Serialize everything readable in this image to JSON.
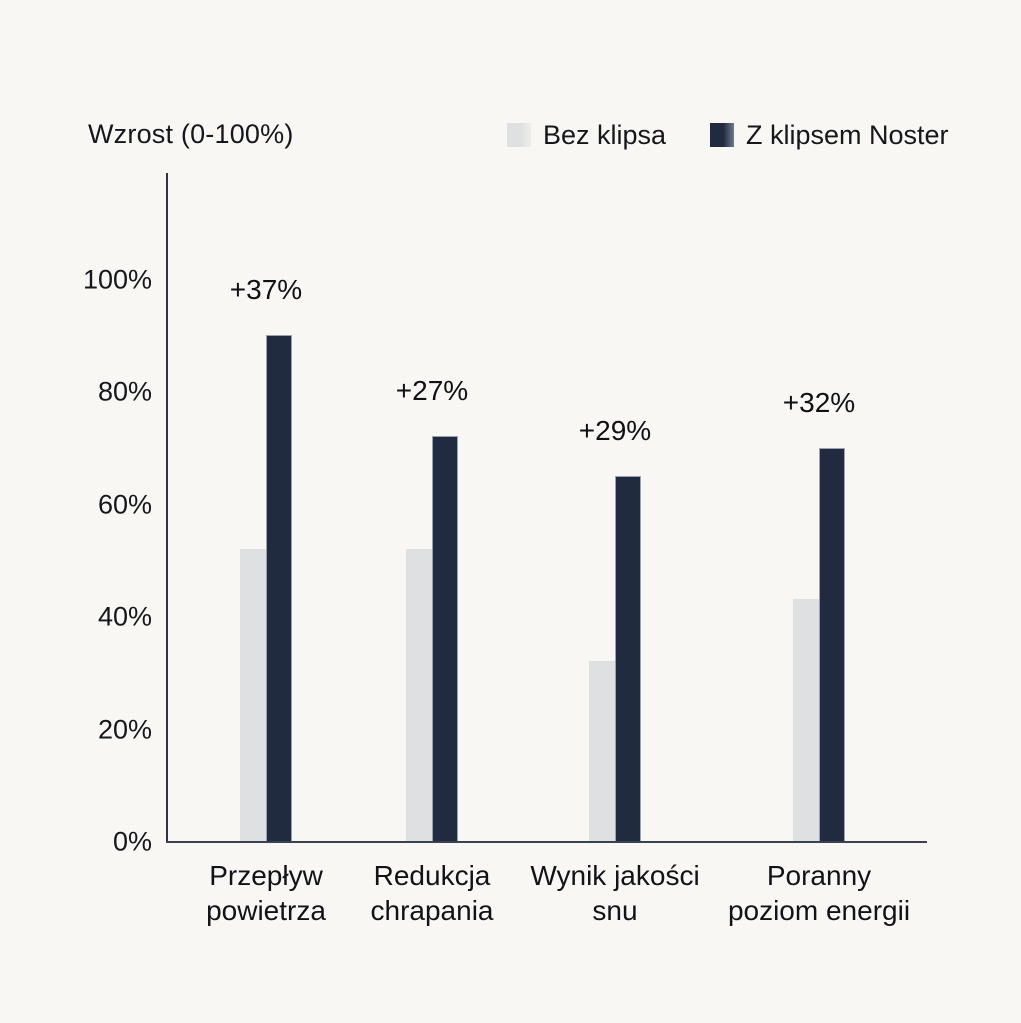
{
  "header": {
    "axis_title": "Wzrost (0-100%)"
  },
  "chart_data": {
    "type": "bar",
    "title": "Wzrost (0-100%)",
    "ylabel": "Wzrost (0-100%)",
    "xlabel": "",
    "ylim": [
      0,
      100
    ],
    "grid": false,
    "legend_position": "top",
    "y_tick_values": [
      0,
      20,
      40,
      60,
      80,
      100
    ],
    "y_tick_labels": [
      "0%",
      "20%",
      "40%",
      "60%",
      "80%",
      "100%"
    ],
    "categories": [
      "Przepływ powietrza",
      "Redukcja chrapania",
      "Wynik jakości snu",
      "Poranny poziom energii"
    ],
    "category_lines": [
      [
        "Przepływ",
        "powietrza"
      ],
      [
        "Redukcja",
        "chrapania"
      ],
      [
        "Wynik jakości",
        "snu"
      ],
      [
        "Poranny",
        "poziom energii"
      ]
    ],
    "series": [
      {
        "name": "Bez klipsa",
        "color": "#dfe0e1",
        "fade": "#efeeec",
        "values": [
          52,
          52,
          32,
          43
        ]
      },
      {
        "name": "Z klipsem Noster",
        "color": "#202b40",
        "fade": "#6f7a8d",
        "values": [
          90,
          72,
          65,
          70
        ]
      }
    ],
    "annotations": [
      "+37%",
      "+27%",
      "+29%",
      "+32%"
    ]
  },
  "colors": {
    "background": "#f8f7f4",
    "axis_line": "#30343d",
    "text": "#15171c",
    "bar_light": "#dfe0e1",
    "bar_dark": "#202b40"
  }
}
